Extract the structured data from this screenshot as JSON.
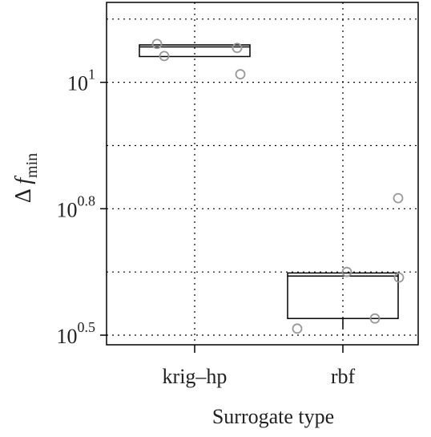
{
  "chart_data": {
    "type": "box",
    "ylabel": {
      "symbol": "Δ",
      "var": "f",
      "sub": "min"
    },
    "xlabel": "Surrogate type",
    "log_base": "10",
    "categories": [
      "krig–hp",
      "rbf"
    ],
    "boxes": [
      {
        "q1": 1.051,
        "median": 1.07,
        "q3": 1.074,
        "whisker_low": 1.051,
        "whisker_high": 1.074
      },
      {
        "q1": 0.533,
        "median": 0.617,
        "q3": 0.623,
        "whisker_low": 0.513,
        "whisker_high": 0.625
      }
    ],
    "points": [
      [
        1.076,
        1.052,
        1.068,
        1.016
      ],
      [
        0.513,
        0.625,
        0.533,
        0.614,
        0.771
      ]
    ],
    "ylim": [
      0.481,
      1.158
    ],
    "yticks": [
      {
        "value": 0.5,
        "label": "0.5"
      },
      {
        "value": 0.75,
        "label": "0.8"
      },
      {
        "value": 1.0,
        "label": "1"
      }
    ],
    "minor_grid": [
      0.625,
      0.875,
      1.125
    ],
    "grid": true,
    "box_color": "#000000",
    "point_color": "#999999"
  }
}
